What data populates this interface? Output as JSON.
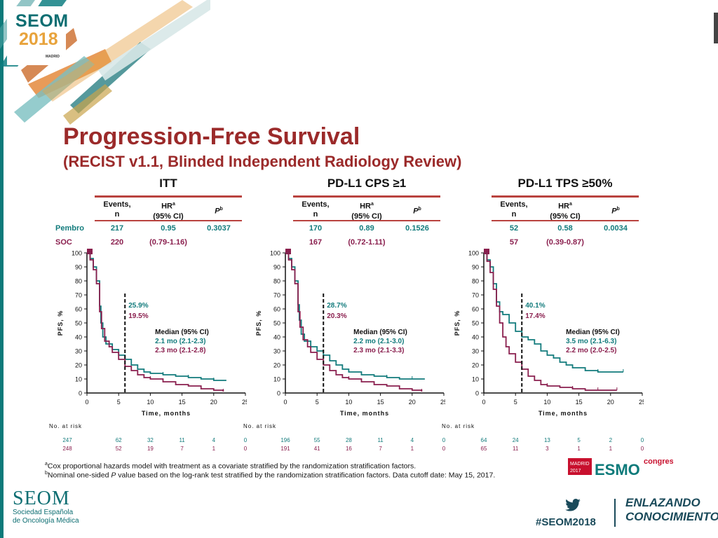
{
  "conference": {
    "logo_name": "SEOM",
    "logo_year": "2018",
    "logo_city": "MADRID",
    "footer_org_name": "SEOM",
    "footer_org_line1": "Sociedad Española",
    "footer_org_line2": "de Oncología Médica",
    "hashtag": "#SEOM2018",
    "tagline_line1": "ENLAZANDO",
    "tagline_line2": "CONOCIMIENTO",
    "accent_teal": "#127b7c",
    "accent_maroon": "#8a1f4e",
    "title_color": "#9b2a2a"
  },
  "slide": {
    "title": "Progression-Free Survival",
    "subtitle": "(RECIST v1.1, Blinded Independent Radiology Review)",
    "table_headers": {
      "events_line1": "Events,",
      "events_line2": "n",
      "hr_line1": "HR",
      "hr_sup": "a",
      "hr_line2": "(95% CI)",
      "p_label": "P",
      "p_sup": "b"
    },
    "row_labels": {
      "pembro": "Pembro",
      "soc": "SOC"
    },
    "at_risk_label": "No. at risk",
    "footnote_a": "Cox proportional hazards model with treatment as a covariate stratified by the randomization stratification factors.",
    "footnote_b_pre": "Nominal one-sided ",
    "footnote_b_p": "P",
    "footnote_b_post": " value based on the log-rank test stratified by the randomization stratification factors. Data cutoff date: May 15, 2017.",
    "esmo_badge_line1": "MADRID",
    "esmo_badge_line2": "2017",
    "esmo_word": "ESMO",
    "esmo_congress": "congress"
  },
  "chart_data": [
    {
      "type": "line",
      "title": "ITT",
      "xlabel": "Time, months",
      "ylabel": "PFS, %",
      "xlim": [
        0,
        25
      ],
      "ylim": [
        0,
        100
      ],
      "xticks": [
        0,
        5,
        10,
        15,
        20,
        25
      ],
      "yticks": [
        0,
        10,
        20,
        30,
        40,
        50,
        60,
        70,
        80,
        90,
        100
      ],
      "table": {
        "pembro": {
          "events": "217",
          "hr": "0.95",
          "p": "0.3037"
        },
        "soc": {
          "events": "220",
          "hr_ci": "(0.79-1.16)"
        }
      },
      "landmark_x": 6,
      "landmark_pembro": "25.9%",
      "landmark_soc": "19.5%",
      "median_title": "Median (95% CI)",
      "median_pembro": "2.1 mo (2.1-2.3)",
      "median_soc": "2.3 mo (2.1-2.8)",
      "series": [
        {
          "name": "Pembro",
          "color": "#127b7c",
          "x": [
            0,
            0.5,
            1,
            1.5,
            2,
            2.2,
            2.5,
            3,
            4,
            5,
            6,
            7,
            8,
            9,
            10,
            12,
            14,
            16,
            18,
            20,
            22
          ],
          "y": [
            100,
            96,
            90,
            80,
            62,
            50,
            40,
            35,
            31,
            27,
            24,
            20,
            17,
            15,
            14,
            13,
            12,
            11,
            10,
            9,
            9
          ]
        },
        {
          "name": "SOC",
          "color": "#8a1f4e",
          "x": [
            0,
            0.5,
            1,
            1.5,
            2,
            2.3,
            2.8,
            3.5,
            4,
            5,
            6,
            7,
            8,
            9,
            10,
            12,
            14,
            16,
            18,
            20,
            21.5
          ],
          "y": [
            100,
            95,
            88,
            78,
            58,
            46,
            37,
            33,
            29,
            24,
            19,
            16,
            13,
            11,
            10,
            8,
            6,
            5,
            3,
            2,
            1
          ]
        }
      ],
      "at_risk": {
        "pembro": [
          "247",
          "62",
          "32",
          "11",
          "4",
          "0"
        ],
        "soc": [
          "248",
          "52",
          "19",
          "7",
          "1",
          "0"
        ]
      }
    },
    {
      "type": "line",
      "title": "PD-L1 CPS ≥1",
      "xlabel": "Time, months",
      "ylabel": "PFS, %",
      "xlim": [
        0,
        25
      ],
      "ylim": [
        0,
        100
      ],
      "xticks": [
        0,
        5,
        10,
        15,
        20,
        25
      ],
      "yticks": [
        0,
        10,
        20,
        30,
        40,
        50,
        60,
        70,
        80,
        90,
        100
      ],
      "table": {
        "pembro": {
          "events": "170",
          "hr": "0.89",
          "p": "0.1526"
        },
        "soc": {
          "events": "167",
          "hr_ci": "(0.72-1.11)"
        }
      },
      "landmark_x": 6,
      "landmark_pembro": "28.7%",
      "landmark_soc": "20.3%",
      "median_title": "Median (95% CI)",
      "median_pembro": "2.2 mo (2.1-3.0)",
      "median_soc": "2.3 mo (2.1-3.3)",
      "series": [
        {
          "name": "Pembro",
          "color": "#127b7c",
          "x": [
            0,
            0.5,
            1,
            1.5,
            2,
            2.2,
            2.5,
            3,
            4,
            5,
            6,
            7,
            8,
            9,
            10,
            12,
            14,
            16,
            18,
            20,
            22
          ],
          "y": [
            100,
            96,
            90,
            80,
            63,
            52,
            42,
            37,
            33,
            30,
            27,
            23,
            20,
            17,
            15,
            13,
            12,
            11,
            10,
            10,
            10
          ]
        },
        {
          "name": "SOC",
          "color": "#8a1f4e",
          "x": [
            0,
            0.5,
            1,
            1.5,
            2,
            2.3,
            2.8,
            3.5,
            4,
            5,
            6,
            7,
            8,
            9,
            10,
            12,
            14,
            16,
            18,
            20,
            21.5
          ],
          "y": [
            100,
            95,
            88,
            78,
            58,
            47,
            38,
            33,
            29,
            24,
            20,
            16,
            13,
            11,
            10,
            8,
            6,
            5,
            3,
            2,
            1
          ]
        }
      ],
      "at_risk": {
        "pembro": [
          "196",
          "55",
          "28",
          "11",
          "4",
          "0"
        ],
        "soc": [
          "191",
          "41",
          "16",
          "7",
          "1",
          "0"
        ]
      }
    },
    {
      "type": "line",
      "title": "PD-L1 TPS ≥50%",
      "xlabel": "Time, months",
      "ylabel": "PFS, %",
      "xlim": [
        0,
        25
      ],
      "ylim": [
        0,
        100
      ],
      "xticks": [
        0,
        5,
        10,
        15,
        20,
        25
      ],
      "yticks": [
        0,
        10,
        20,
        30,
        40,
        50,
        60,
        70,
        80,
        90,
        100
      ],
      "table": {
        "pembro": {
          "events": "52",
          "hr": "0.58",
          "p": "0.0034"
        },
        "soc": {
          "events": "57",
          "hr_ci": "(0.39-0.87)"
        }
      },
      "landmark_x": 6,
      "landmark_pembro": "40.1%",
      "landmark_soc": "17.4%",
      "median_title": "Median (95% CI)",
      "median_pembro": "3.5 mo (2.1-6.3)",
      "median_soc": "2.2 mo (2.0-2.5)",
      "series": [
        {
          "name": "Pembro",
          "color": "#127b7c",
          "x": [
            0,
            0.5,
            1,
            1.5,
            2,
            2.5,
            3,
            4,
            5,
            6,
            7,
            8,
            9,
            10,
            11,
            12,
            13,
            14,
            16,
            18,
            20,
            22
          ],
          "y": [
            100,
            95,
            90,
            78,
            65,
            58,
            56,
            50,
            44,
            40,
            38,
            35,
            30,
            27,
            25,
            22,
            20,
            18,
            16,
            15,
            15,
            15
          ]
        },
        {
          "name": "SOC",
          "color": "#8a1f4e",
          "x": [
            0,
            0.5,
            1,
            1.5,
            2,
            2.5,
            3,
            3.5,
            4,
            5,
            6,
            7,
            8,
            9,
            10,
            12,
            14,
            16,
            18,
            20,
            21
          ],
          "y": [
            100,
            94,
            86,
            74,
            62,
            50,
            40,
            33,
            28,
            22,
            17,
            12,
            9,
            6,
            5,
            4,
            3,
            2,
            2,
            2,
            2
          ]
        }
      ],
      "at_risk": {
        "pembro": [
          "64",
          "24",
          "13",
          "5",
          "2",
          "0"
        ],
        "soc": [
          "65",
          "11",
          "3",
          "1",
          "1",
          "0"
        ]
      }
    }
  ]
}
